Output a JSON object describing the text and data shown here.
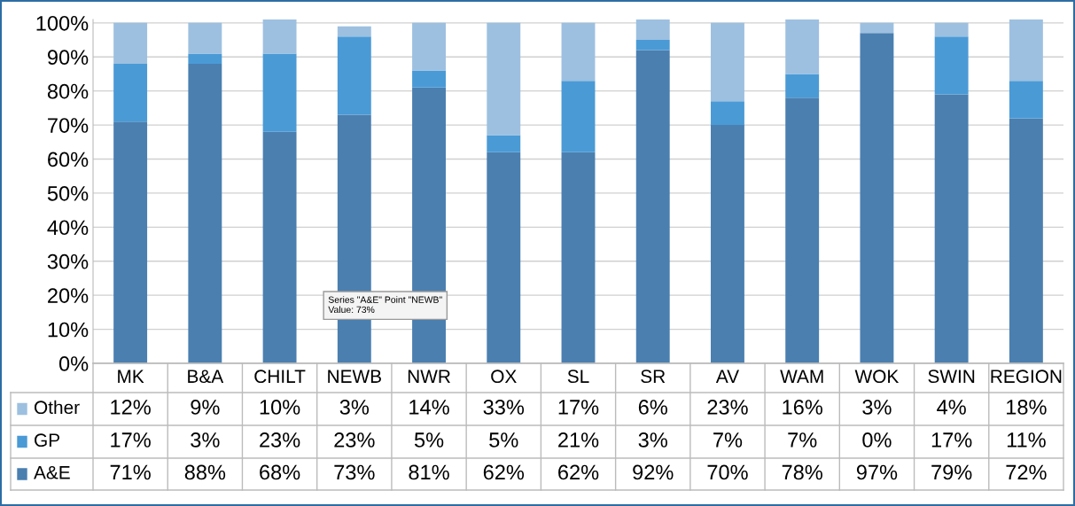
{
  "chart_data": {
    "type": "bar",
    "stacked": true,
    "categories": [
      "MK",
      "B&A",
      "CHILT",
      "NEWB",
      "NWR",
      "OX",
      "SL",
      "SR",
      "AV",
      "WAM",
      "WOK",
      "SWIN",
      "REGION"
    ],
    "series": [
      {
        "name": "A&E",
        "color": "#4a7fb0",
        "values": [
          71,
          88,
          68,
          73,
          81,
          62,
          62,
          92,
          70,
          78,
          97,
          79,
          72
        ],
        "value_labels": [
          "71%",
          "88%",
          "68%",
          "73%",
          "81%",
          "62%",
          "62%",
          "92%",
          "70%",
          "78%",
          "97%",
          "79%",
          "72%"
        ]
      },
      {
        "name": "GP",
        "color": "#4a9ad6",
        "values": [
          17,
          3,
          23,
          23,
          5,
          5,
          21,
          3,
          7,
          7,
          0,
          17,
          11
        ],
        "value_labels": [
          "17%",
          "3%",
          "23%",
          "23%",
          "5%",
          "5%",
          "21%",
          "3%",
          "7%",
          "7%",
          "0%",
          "17%",
          "11%"
        ]
      },
      {
        "name": "Other",
        "color": "#9dc0e0",
        "values": [
          12,
          9,
          10,
          3,
          14,
          33,
          17,
          6,
          23,
          16,
          3,
          4,
          18
        ],
        "value_labels": [
          "12%",
          "9%",
          "10%",
          "3%",
          "14%",
          "33%",
          "17%",
          "6%",
          "23%",
          "16%",
          "3%",
          "4%",
          "18%"
        ]
      }
    ],
    "ylim": [
      0,
      101
    ],
    "legend": "bottom left",
    "yticks": [
      {
        "value": 0,
        "label": "0%"
      },
      {
        "value": 10,
        "label": "10%"
      },
      {
        "value": 20,
        "label": "20%"
      },
      {
        "value": 30,
        "label": "30%"
      },
      {
        "value": 40,
        "label": "40%"
      },
      {
        "value": 50,
        "label": "50%"
      },
      {
        "value": 60,
        "label": "60%"
      },
      {
        "value": 70,
        "label": "70%"
      },
      {
        "value": 80,
        "label": "80%"
      },
      {
        "value": 90,
        "label": "90%"
      },
      {
        "value": 100,
        "label": "100%"
      }
    ],
    "grid": "y",
    "annotations": [
      "Series \"A&E\" Point \"NEWB\"\nValue: 73%"
    ]
  }
}
